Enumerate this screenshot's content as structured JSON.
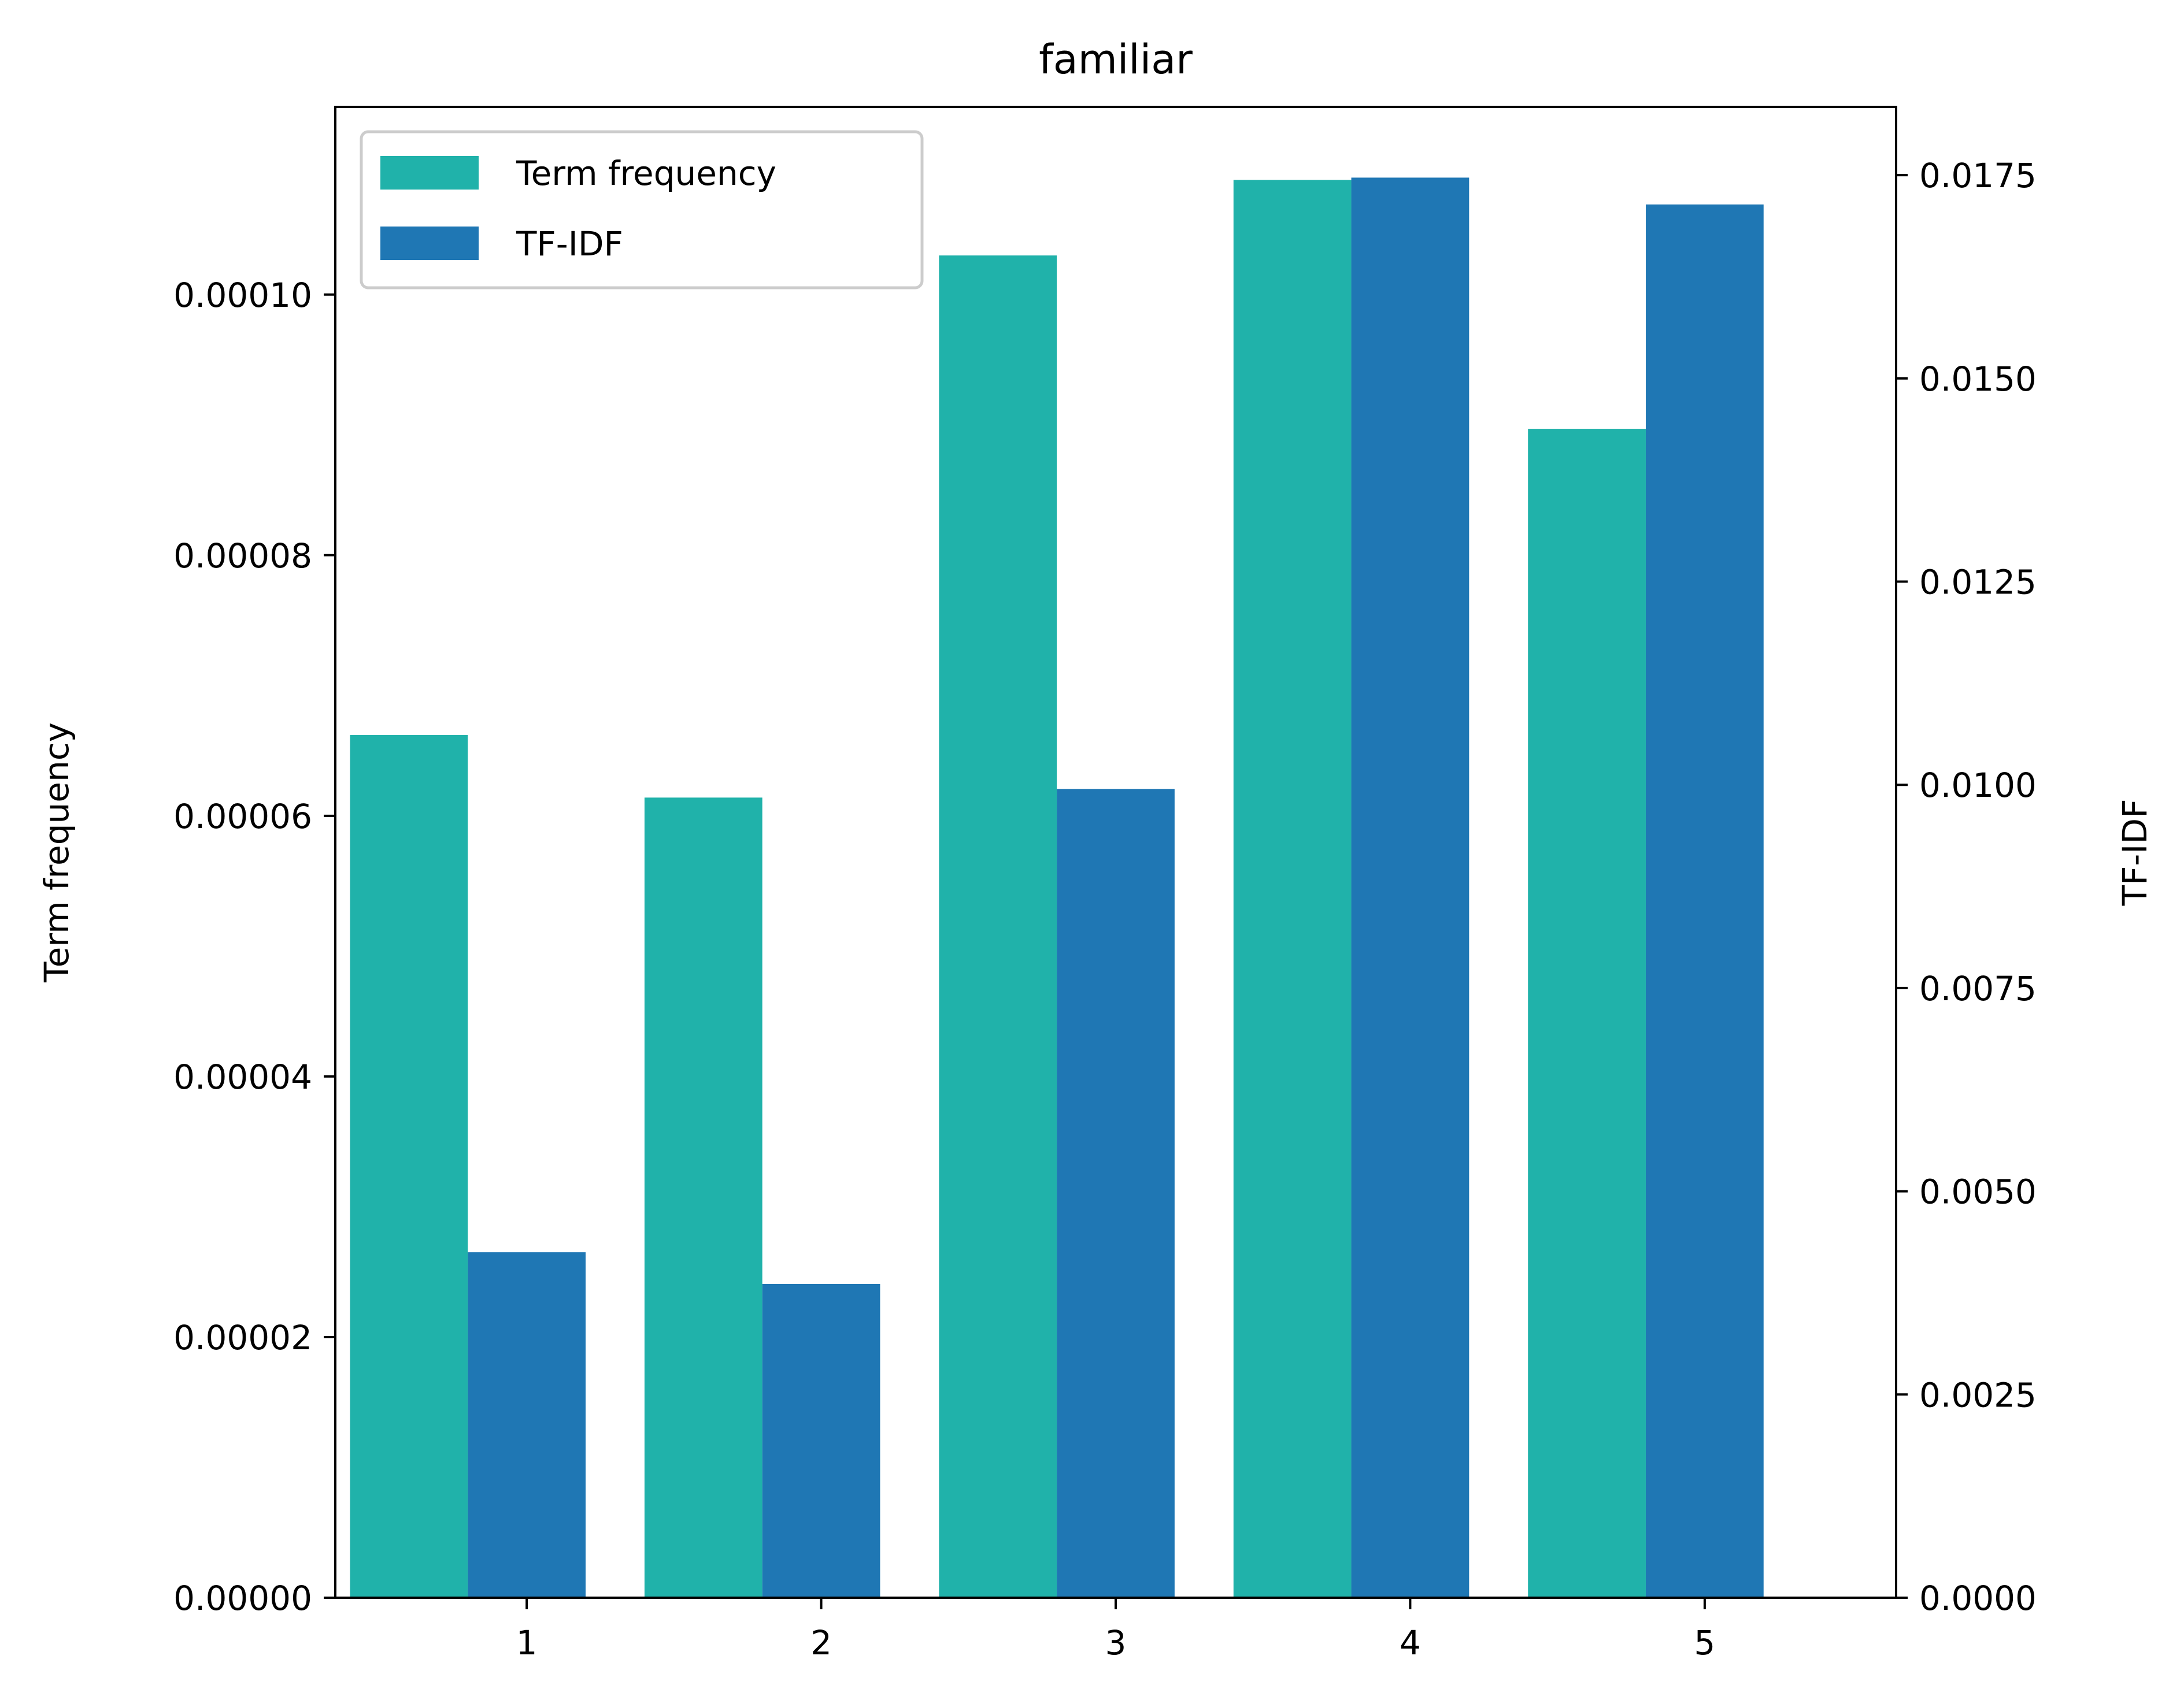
{
  "chart_data": {
    "type": "bar",
    "title": "familiar",
    "categories": [
      "1",
      "2",
      "3",
      "4",
      "5"
    ],
    "x_ticks": [
      1,
      2,
      3,
      4,
      5
    ],
    "series": [
      {
        "name": "Term frequency",
        "axis": "left",
        "color": "#20b2aa",
        "positions": [
          0.6,
          1.6,
          2.6,
          3.6,
          4.6
        ],
        "values": [
          6.62e-05,
          6.14e-05,
          0.000103,
          0.0001088,
          8.97e-05
        ]
      },
      {
        "name": "TF-IDF",
        "axis": "right",
        "color": "#1f77b4",
        "positions": [
          1.0,
          2.0,
          3.0,
          4.0,
          5.0
        ],
        "values": [
          0.00425,
          0.00386,
          0.00995,
          0.01747,
          0.01714
        ]
      }
    ],
    "bar_width": 0.4,
    "xlim": [
      0.35,
      5.65
    ],
    "ylabel_left": "Term frequency",
    "ylabel_right": "TF-IDF",
    "ylim_left": [
      0,
      0.0001144
    ],
    "ylim_right": [
      0,
      0.01834
    ],
    "yticks_left": [
      "0.00000",
      "0.00002",
      "0.00004",
      "0.00006",
      "0.00008",
      "0.00010"
    ],
    "yticks_left_values": [
      0,
      2e-05,
      4e-05,
      6e-05,
      8e-05,
      0.0001
    ],
    "yticks_right": [
      "0.0000",
      "0.0025",
      "0.0050",
      "0.0075",
      "0.0100",
      "0.0125",
      "0.0150",
      "0.0175"
    ],
    "yticks_right_values": [
      0,
      0.0025,
      0.005,
      0.0075,
      0.01,
      0.0125,
      0.015,
      0.0175
    ],
    "legend_position": "upper-left",
    "grid": false
  }
}
